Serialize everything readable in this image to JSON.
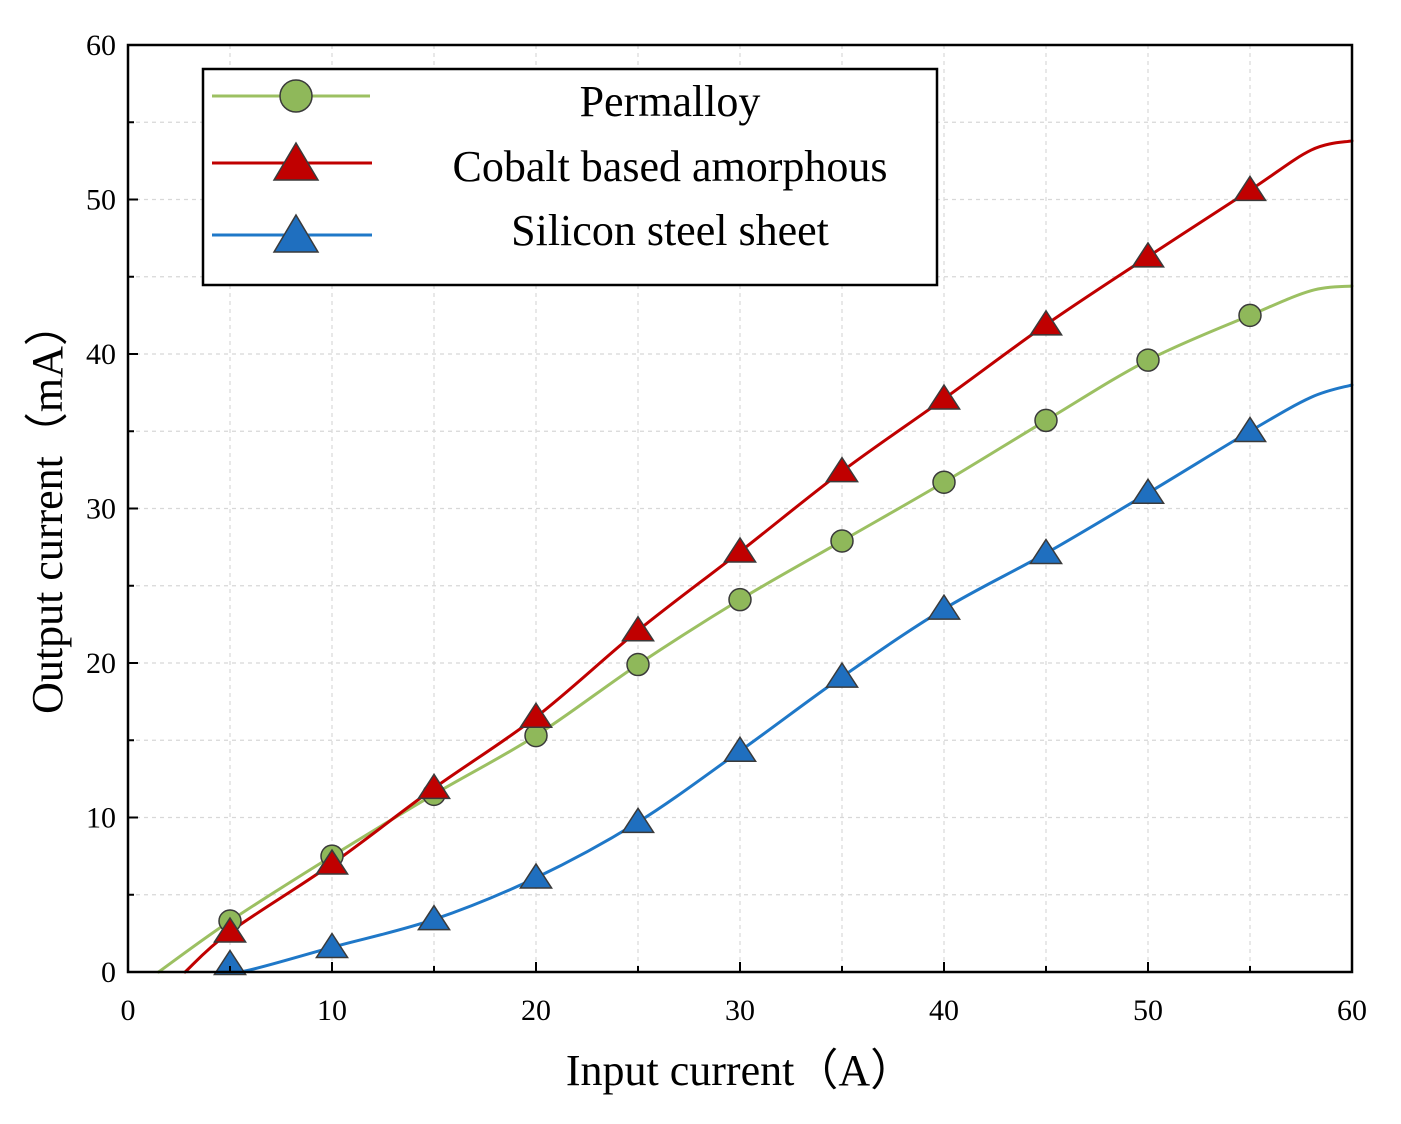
{
  "chart_data": {
    "type": "line",
    "title": "",
    "xlabel": "Input current（A）",
    "ylabel": "Output current（mA）",
    "xlim": [
      0,
      60
    ],
    "ylim": [
      0,
      60
    ],
    "xticks": [
      0,
      10,
      20,
      30,
      40,
      50,
      60
    ],
    "yticks": [
      0,
      10,
      20,
      30,
      40,
      50,
      60
    ],
    "grid": true,
    "legend_position": "top-left",
    "series": [
      {
        "name": "Permalloy",
        "color": "#8fb85a",
        "line_color": "#9cc062",
        "marker": "circle",
        "x": [
          5,
          10,
          15,
          20,
          25,
          30,
          35,
          40,
          45,
          50,
          55
        ],
        "y": [
          3.3,
          7.5,
          11.5,
          15.3,
          19.9,
          24.1,
          27.9,
          31.7,
          35.7,
          39.6,
          42.5
        ],
        "curve": [
          [
            1.5,
            0
          ],
          [
            5,
            3.3
          ],
          [
            10,
            7.5
          ],
          [
            15,
            11.5
          ],
          [
            20,
            15.3
          ],
          [
            25,
            19.9
          ],
          [
            30,
            24.1
          ],
          [
            35,
            27.9
          ],
          [
            40,
            31.7
          ],
          [
            45,
            35.7
          ],
          [
            50,
            39.6
          ],
          [
            55,
            42.5
          ],
          [
            58,
            44.1
          ],
          [
            60,
            44.4
          ]
        ]
      },
      {
        "name": "Cobalt based amorphous",
        "color": "#c00000",
        "line_color": "#c00000",
        "marker": "triangle",
        "x": [
          5,
          10,
          15,
          20,
          25,
          30,
          35,
          40,
          45,
          50,
          55
        ],
        "y": [
          2.6,
          7.0,
          11.9,
          16.5,
          22.1,
          27.2,
          32.4,
          37.1,
          41.9,
          46.3,
          50.6
        ],
        "curve": [
          [
            2.8,
            0
          ],
          [
            5,
            2.6
          ],
          [
            10,
            7.0
          ],
          [
            15,
            11.9
          ],
          [
            20,
            16.5
          ],
          [
            25,
            22.1
          ],
          [
            30,
            27.2
          ],
          [
            35,
            32.4
          ],
          [
            40,
            37.1
          ],
          [
            45,
            41.9
          ],
          [
            50,
            46.3
          ],
          [
            55,
            50.6
          ],
          [
            58,
            53.2
          ],
          [
            60,
            53.8
          ]
        ]
      },
      {
        "name": "Silicon steel sheet",
        "color": "#1f6fbf",
        "line_color": "#1f78c8",
        "marker": "triangle",
        "x": [
          5,
          10,
          15,
          20,
          25,
          30,
          35,
          40,
          45,
          50,
          55
        ],
        "y": [
          0.5,
          1.6,
          3.4,
          6.1,
          9.7,
          14.3,
          19.1,
          23.5,
          27.1,
          31.0,
          35.0
        ],
        "curve": [
          [
            5,
            0.5
          ],
          [
            5.5,
            0
          ],
          [
            10,
            1.6
          ],
          [
            15,
            3.4
          ],
          [
            20,
            6.1
          ],
          [
            25,
            9.7
          ],
          [
            30,
            14.3
          ],
          [
            35,
            19.1
          ],
          [
            40,
            23.5
          ],
          [
            45,
            27.1
          ],
          [
            50,
            31.0
          ],
          [
            55,
            35.0
          ],
          [
            58,
            37.2
          ],
          [
            60,
            38.0
          ]
        ]
      }
    ]
  }
}
